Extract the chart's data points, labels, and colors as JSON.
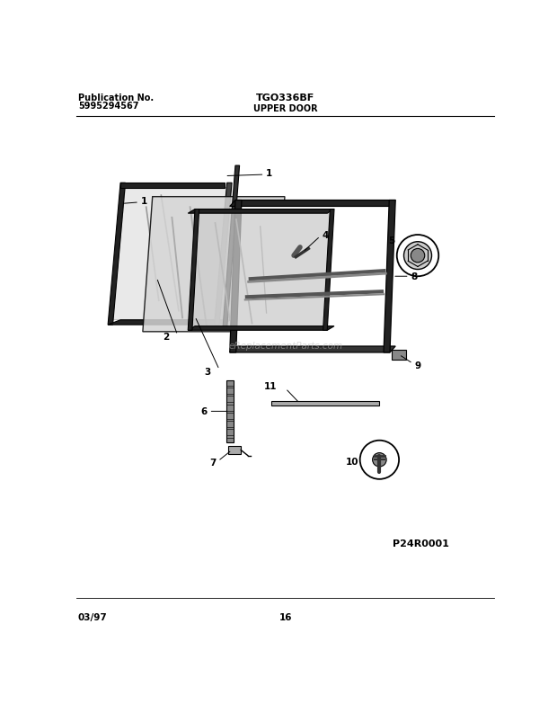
{
  "title_left_line1": "Publication No.",
  "title_left_line2": "5995294567",
  "title_center": "TGO336BF",
  "title_center2": "UPPER DOOR",
  "footer_left": "03/97",
  "footer_center": "16",
  "diagram_id": "P24R0001",
  "bg_color": "#ffffff",
  "watermark": "eReplacementParts.com"
}
